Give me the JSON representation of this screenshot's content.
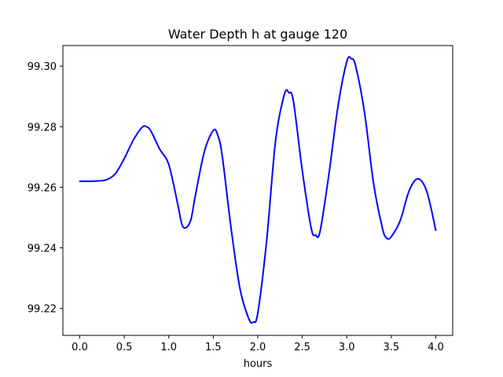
{
  "chart_data": {
    "type": "line",
    "title": "Water Depth h at gauge 120",
    "xlabel": "hours",
    "ylabel": "",
    "xlim": [
      -0.19,
      4.19
    ],
    "ylim": [
      99.2111,
      99.3068
    ],
    "xticks": [
      0.0,
      0.5,
      1.0,
      1.5,
      2.0,
      2.5,
      3.0,
      3.5,
      4.0
    ],
    "xtick_labels": [
      "0.0",
      "0.5",
      "1.0",
      "1.5",
      "2.0",
      "2.5",
      "3.0",
      "3.5",
      "4.0"
    ],
    "yticks": [
      99.22,
      99.24,
      99.26,
      99.28,
      99.3
    ],
    "ytick_labels": [
      "99.22",
      "99.24",
      "99.26",
      "99.28",
      "99.30"
    ],
    "grid": false,
    "legend": "none",
    "line_color": "#0000ff",
    "series": [
      {
        "x": [
          0.0,
          0.1,
          0.2,
          0.3,
          0.4,
          0.5,
          0.6,
          0.7,
          0.75,
          0.8,
          0.9,
          1.0,
          1.1,
          1.15,
          1.2,
          1.25,
          1.3,
          1.4,
          1.5,
          1.55,
          1.6,
          1.7,
          1.8,
          1.9,
          1.95,
          2.0,
          2.1,
          2.2,
          2.3,
          2.35,
          2.4,
          2.5,
          2.6,
          2.65,
          2.7,
          2.8,
          2.9,
          3.0,
          3.05,
          3.1,
          3.2,
          3.3,
          3.4,
          3.45,
          3.5,
          3.6,
          3.7,
          3.8,
          3.9,
          4.0
        ],
        "y": [
          99.262,
          99.262,
          99.2621,
          99.2625,
          99.2645,
          99.2695,
          99.2755,
          99.2798,
          99.28,
          99.2785,
          99.2725,
          99.2675,
          99.2545,
          99.2475,
          99.2468,
          99.2495,
          99.2575,
          99.2718,
          99.2788,
          99.2772,
          99.2705,
          99.2465,
          99.2265,
          99.2165,
          99.2155,
          99.2185,
          99.2425,
          99.2755,
          99.2908,
          99.2912,
          99.2885,
          99.2655,
          99.2465,
          99.2442,
          99.2455,
          99.2645,
          99.2865,
          99.3015,
          99.3025,
          99.3,
          99.2845,
          99.2615,
          99.2465,
          99.2432,
          99.2437,
          99.249,
          99.2588,
          99.2628,
          99.2585,
          99.2458
        ]
      }
    ]
  }
}
